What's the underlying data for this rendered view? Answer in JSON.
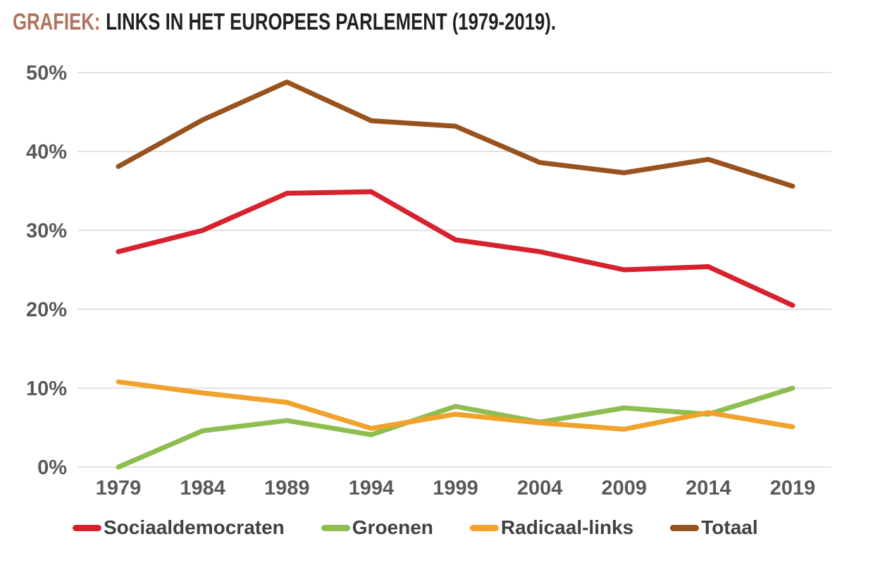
{
  "header": {
    "title_prefix": "GRAFIEK:",
    "title_main": "LINKS IN HET EUROPEES PARLEMENT (1979-2019).",
    "accent_color": "#b1735a",
    "text_color": "#231f20"
  },
  "axis_style": {
    "gridline_color": "#d9d9d9",
    "label_color": "#58595b"
  },
  "chart_data": {
    "type": "line",
    "title": "LINKS IN HET EUROPEES PARLEMENT (1979-2019).",
    "categories": [
      "1979",
      "1984",
      "1989",
      "1994",
      "1999",
      "2004",
      "2009",
      "2014",
      "2019"
    ],
    "xlabel": "",
    "ylabel": "",
    "ylim": [
      0,
      50
    ],
    "y_ticks": [
      {
        "value": 0,
        "label": "0%"
      },
      {
        "value": 10,
        "label": "10%"
      },
      {
        "value": 20,
        "label": "20%"
      },
      {
        "value": 30,
        "label": "30%"
      },
      {
        "value": 40,
        "label": "40%"
      },
      {
        "value": 50,
        "label": "50%"
      }
    ],
    "grid": "horizontal",
    "legend_position": "bottom",
    "series": [
      {
        "name": "Sociaaldemocraten",
        "color": "#d7212d",
        "values": [
          27.3,
          30.0,
          34.7,
          34.9,
          28.8,
          27.3,
          25.0,
          25.4,
          20.5
        ]
      },
      {
        "name": "Groenen",
        "color": "#8ebe50",
        "values": [
          0.0,
          4.6,
          5.9,
          4.1,
          7.7,
          5.7,
          7.5,
          6.7,
          10.0
        ]
      },
      {
        "name": "Radicaal-links",
        "color": "#f0a22c",
        "values": [
          10.8,
          9.4,
          8.2,
          4.9,
          6.7,
          5.6,
          4.8,
          6.9,
          5.1
        ]
      },
      {
        "name": "Totaal",
        "color": "#98521e",
        "values": [
          38.1,
          44.0,
          48.8,
          43.9,
          43.2,
          38.6,
          37.3,
          39.0,
          35.6
        ]
      }
    ]
  }
}
